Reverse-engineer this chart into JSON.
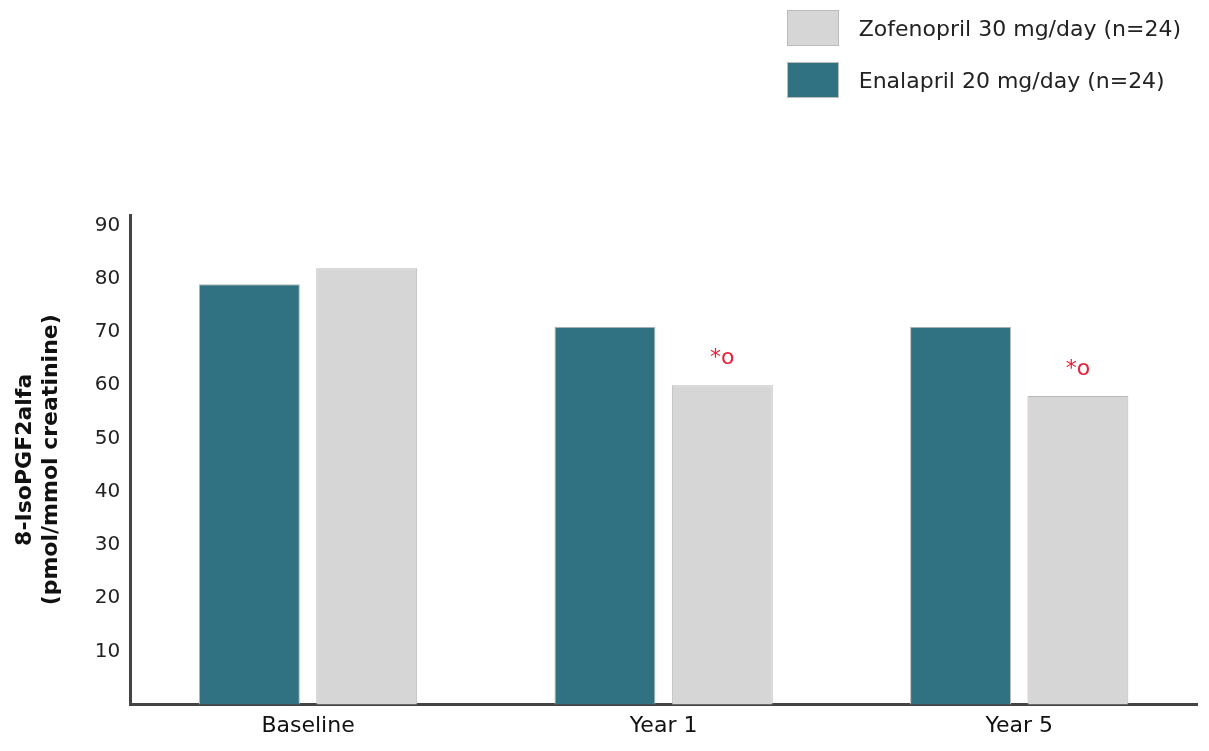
{
  "chart_data": {
    "type": "bar",
    "ylabel": "8-IsoPGF2alfa\n(pmol/mmol creatinine)",
    "categories": [
      "Baseline",
      "Year 1",
      "Year 5"
    ],
    "series": [
      {
        "name": "Enalapril 20 mg/day (n=24)",
        "color": "#317282",
        "values": [
          79,
          71,
          71
        ]
      },
      {
        "name": "Zofenopril 30 mg/day (n=24)",
        "color": "#d6d6d6",
        "values": [
          82,
          60,
          58
        ]
      }
    ],
    "ylim": [
      0,
      92
    ],
    "yticks": [
      10,
      20,
      30,
      40,
      50,
      60,
      70,
      80,
      90
    ],
    "grid": false,
    "legend": "top right",
    "annotations": [
      "*o",
      "*o"
    ]
  }
}
